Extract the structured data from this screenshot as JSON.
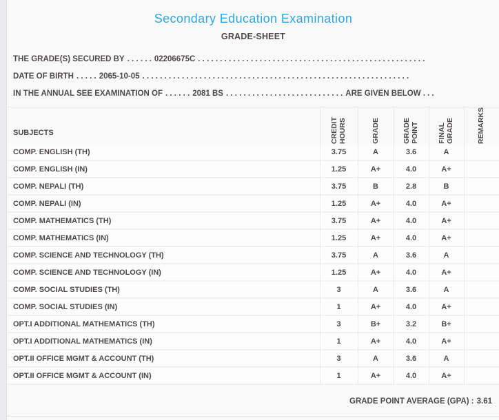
{
  "page": {
    "title": "Secondary Education Examination",
    "subtitle": "GRADE-SHEET"
  },
  "colors": {
    "accent_blue": "#2ba7e2",
    "text": "#4e4949"
  },
  "info_lines": [
    {
      "label": "THE GRADE(S) SECURED BY",
      "leader": ". . . . . .",
      "value": "02206675C",
      "trailer": ". . . . . . . . . . . . . . . . . . . . . . . . . . . . . . . . . . . . . . . . . . . . . . . . . . . .",
      "suffix": ""
    },
    {
      "label": "DATE OF BIRTH",
      "leader": ". . . . .",
      "value": "2065-10-05",
      "trailer": ". . . . . . . . . . . . . . . . . . . . . . . . . . . . . . . . . . . . . . . . . . . . . . . . . . . . . . . . . . . . .",
      "suffix": ""
    },
    {
      "label": "IN THE ANNUAL SEE EXAMINATION OF",
      "leader": ". . . . . .",
      "value": "2081 BS",
      "trailer": ". . . . . . . . . . . . . . . . . . . . . . . . . . .",
      "suffix": "ARE GIVEN BELOW . . ."
    }
  ],
  "table": {
    "subjects_header": "SUBJECTS",
    "columns": [
      "CREDIT\nHOURS",
      "GRADE",
      "GRADE\nPOINT",
      "FINAL\nGRADE",
      "REMARKS"
    ],
    "rows": [
      {
        "subject": "COMP. ENGLISH (TH)",
        "credit_hours": "3.75",
        "grade": "A",
        "grade_point": "3.6",
        "final_grade": "A",
        "remarks": ""
      },
      {
        "subject": "COMP. ENGLISH (IN)",
        "credit_hours": "1.25",
        "grade": "A+",
        "grade_point": "4.0",
        "final_grade": "A+",
        "remarks": ""
      },
      {
        "subject": "COMP. NEPALI (TH)",
        "credit_hours": "3.75",
        "grade": "B",
        "grade_point": "2.8",
        "final_grade": "B",
        "remarks": ""
      },
      {
        "subject": "COMP. NEPALI (IN)",
        "credit_hours": "1.25",
        "grade": "A+",
        "grade_point": "4.0",
        "final_grade": "A+",
        "remarks": ""
      },
      {
        "subject": "COMP. MATHEMATICS (TH)",
        "credit_hours": "3.75",
        "grade": "A+",
        "grade_point": "4.0",
        "final_grade": "A+",
        "remarks": ""
      },
      {
        "subject": "COMP. MATHEMATICS (IN)",
        "credit_hours": "1.25",
        "grade": "A+",
        "grade_point": "4.0",
        "final_grade": "A+",
        "remarks": ""
      },
      {
        "subject": "COMP. SCIENCE AND TECHNOLOGY (TH)",
        "credit_hours": "3.75",
        "grade": "A",
        "grade_point": "3.6",
        "final_grade": "A",
        "remarks": ""
      },
      {
        "subject": "COMP. SCIENCE AND TECHNOLOGY (IN)",
        "credit_hours": "1.25",
        "grade": "A+",
        "grade_point": "4.0",
        "final_grade": "A+",
        "remarks": ""
      },
      {
        "subject": "COMP. SOCIAL STUDIES (TH)",
        "credit_hours": "3",
        "grade": "A",
        "grade_point": "3.6",
        "final_grade": "A",
        "remarks": ""
      },
      {
        "subject": "COMP. SOCIAL STUDIES (IN)",
        "credit_hours": "1",
        "grade": "A+",
        "grade_point": "4.0",
        "final_grade": "A+",
        "remarks": ""
      },
      {
        "subject": "OPT.I ADDITIONAL MATHEMATICS (TH)",
        "credit_hours": "3",
        "grade": "B+",
        "grade_point": "3.2",
        "final_grade": "B+",
        "remarks": ""
      },
      {
        "subject": "OPT.I ADDITIONAL MATHEMATICS (IN)",
        "credit_hours": "1",
        "grade": "A+",
        "grade_point": "4.0",
        "final_grade": "A+",
        "remarks": ""
      },
      {
        "subject": "OPT.II OFFICE MGMT & ACCOUNT (TH)",
        "credit_hours": "3",
        "grade": "A",
        "grade_point": "3.6",
        "final_grade": "A",
        "remarks": ""
      },
      {
        "subject": "OPT.II OFFICE MGMT & ACCOUNT (IN)",
        "credit_hours": "1",
        "grade": "A+",
        "grade_point": "4.0",
        "final_grade": "A+",
        "remarks": ""
      }
    ]
  },
  "footer": {
    "gpa_label": "GRADE POINT AVERAGE (GPA) :",
    "gpa_value": "3.61"
  }
}
